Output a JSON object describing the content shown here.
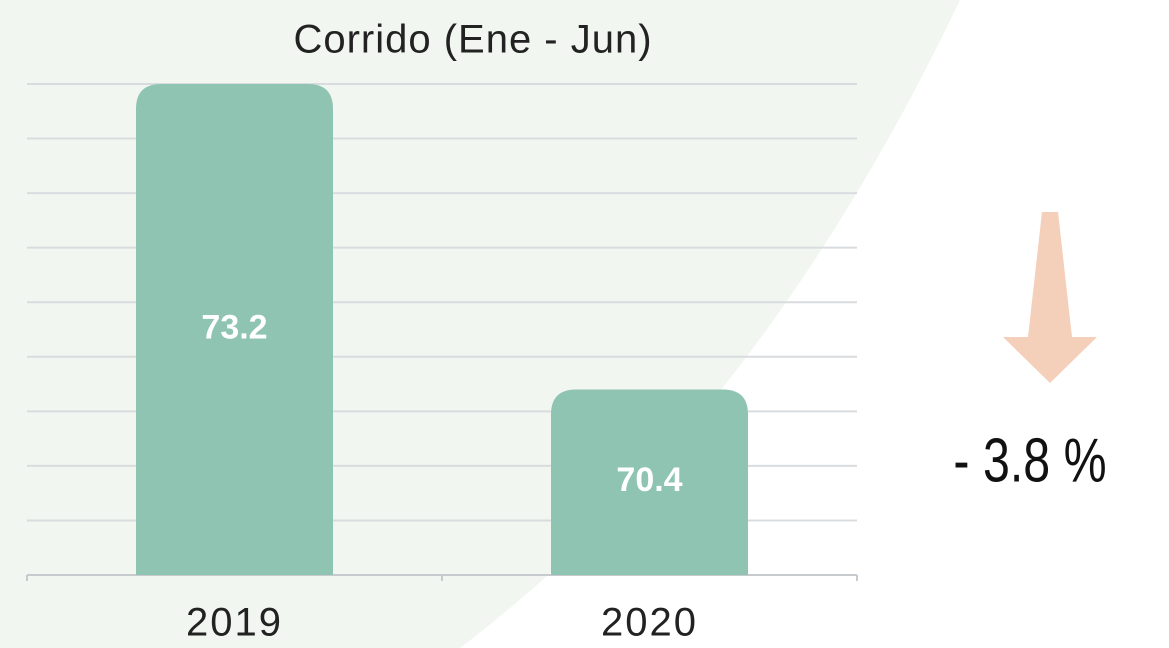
{
  "chart_data": {
    "type": "bar",
    "title": "Corrido (Ene - Jun)",
    "categories": [
      "2019",
      "2020"
    ],
    "values": [
      73.2,
      70.4
    ],
    "color": "#8fc4b3",
    "ylim": [
      68.7,
      73.2
    ],
    "yticks": [
      68.7,
      69.2,
      69.7,
      70.2,
      70.7,
      71.2,
      71.7,
      72.2,
      72.7,
      73.2
    ],
    "grid": true,
    "annotation": "- 3.8 %"
  }
}
